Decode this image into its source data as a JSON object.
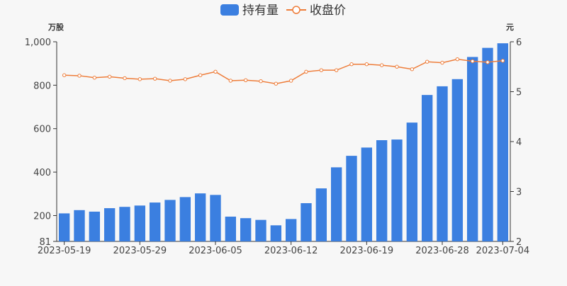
{
  "chart_data": {
    "type": "bar",
    "legend": {
      "placement": "top-center",
      "items": [
        {
          "name": "持有量",
          "kind": "bar",
          "color": "#3b7fe0"
        },
        {
          "name": "收盘价",
          "kind": "line",
          "color": "#ee7d3a"
        }
      ]
    },
    "y_left": {
      "unit_label": "万股",
      "min": 81,
      "max": 1000,
      "ticks": [
        "81",
        "200",
        "400",
        "600",
        "800",
        "1,000"
      ],
      "tick_values": [
        81,
        200,
        400,
        600,
        800,
        1000
      ]
    },
    "y_right": {
      "unit_label": "元",
      "min": 2,
      "max": 6,
      "ticks": [
        "2",
        "3",
        "4",
        "5",
        "6"
      ],
      "tick_values": [
        2,
        3,
        4,
        5,
        6
      ]
    },
    "x_ticks": [
      {
        "label": "2023-05-19",
        "index": 0
      },
      {
        "label": "2023-05-29",
        "index": 5
      },
      {
        "label": "2023-06-05",
        "index": 10
      },
      {
        "label": "2023-06-12",
        "index": 15
      },
      {
        "label": "2023-06-19",
        "index": 20
      },
      {
        "label": "2023-06-28",
        "index": 25
      },
      {
        "label": "2023-07-04",
        "index": 29
      }
    ],
    "series": [
      {
        "name": "持有量",
        "type": "bar",
        "axis": "left",
        "values": [
          210,
          225,
          218,
          234,
          240,
          246,
          260,
          272,
          285,
          302,
          295,
          195,
          188,
          180,
          155,
          184,
          257,
          325,
          422,
          475,
          513,
          547,
          550,
          628,
          755,
          795,
          828,
          930,
          972,
          993
        ]
      },
      {
        "name": "收盘价",
        "type": "line",
        "axis": "right",
        "values": [
          5.33,
          5.32,
          5.28,
          5.3,
          5.27,
          5.25,
          5.26,
          5.22,
          5.25,
          5.33,
          5.4,
          5.22,
          5.23,
          5.21,
          5.16,
          5.22,
          5.4,
          5.43,
          5.43,
          5.55,
          5.55,
          5.53,
          5.5,
          5.45,
          5.6,
          5.58,
          5.65,
          5.61,
          5.59,
          5.62
        ]
      }
    ]
  }
}
